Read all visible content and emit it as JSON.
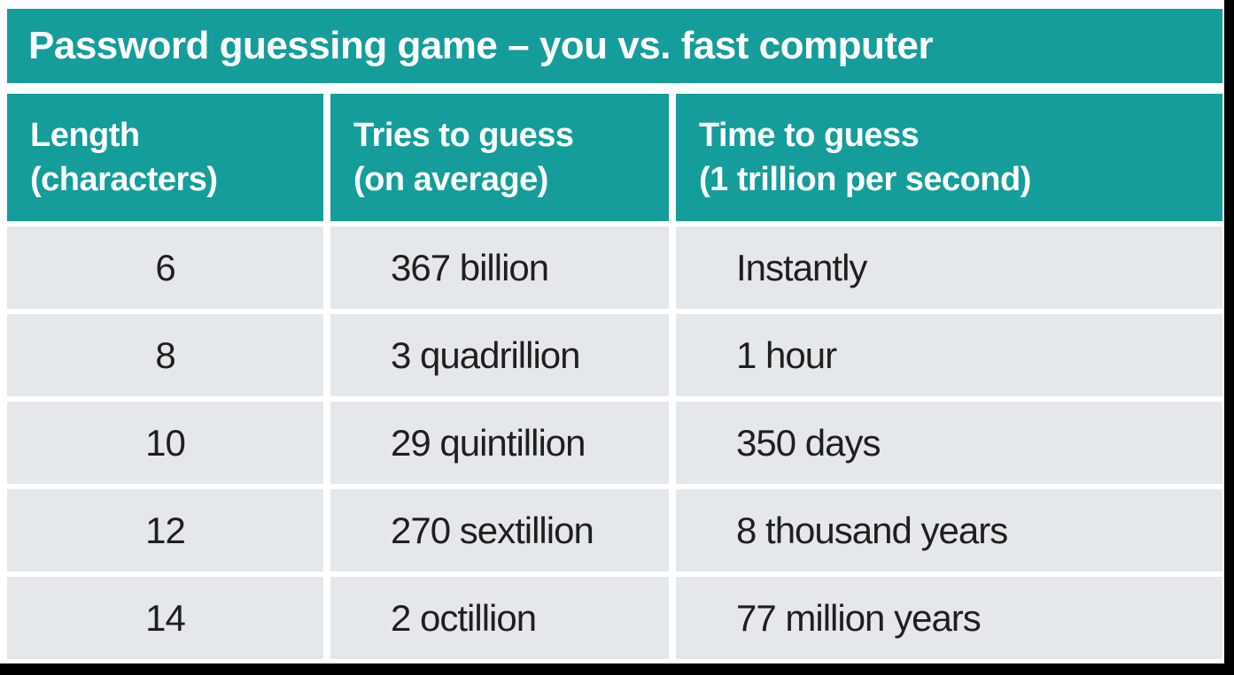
{
  "title": "Password guessing game – you vs. fast computer",
  "table": {
    "header": {
      "length": "Length\n(characters)",
      "tries": "Tries to guess\n(on average)",
      "time": "Time to guess\n(1 trillion per second)"
    },
    "rows": [
      {
        "length": "6",
        "tries": "367 billion",
        "time": "Instantly"
      },
      {
        "length": "8",
        "tries": "3 quadrillion",
        "time": "1 hour"
      },
      {
        "length": "10",
        "tries": "29 quintillion",
        "time": "350 days"
      },
      {
        "length": "12",
        "tries": "270 sextillion",
        "time": "8 thousand years"
      },
      {
        "length": "14",
        "tries": "2 octillion",
        "time": "77 million years"
      }
    ]
  },
  "chart_data": {
    "type": "table",
    "title": "Password guessing game – you vs. fast computer",
    "columns": [
      "Length (characters)",
      "Tries to guess (on average)",
      "Time to guess (1 trillion per second)"
    ],
    "rows": [
      [
        "6",
        "367 billion",
        "Instantly"
      ],
      [
        "8",
        "3 quadrillion",
        "1 hour"
      ],
      [
        "10",
        "29 quintillion",
        "350 days"
      ],
      [
        "12",
        "270 sextillion",
        "8 thousand years"
      ],
      [
        "14",
        "2 octillion",
        "77 million years"
      ]
    ]
  },
  "colors": {
    "teal": "#149D9B",
    "cellgray": "#E5E8EB",
    "ink": "#1F1F1F",
    "frame": "#000000"
  }
}
